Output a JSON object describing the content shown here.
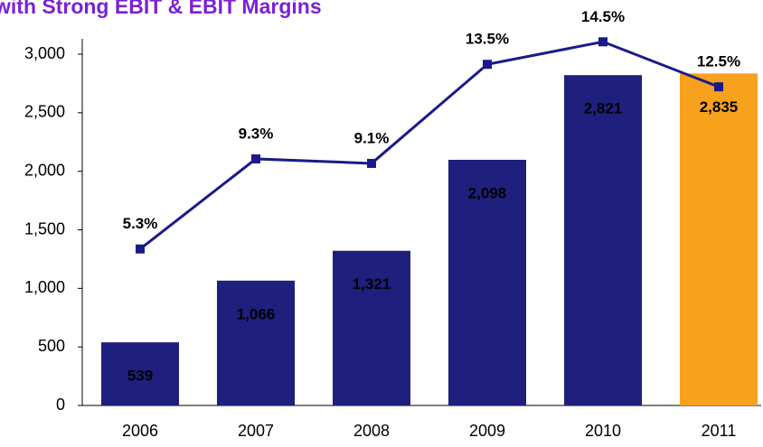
{
  "chart_data": {
    "type": "bar_line",
    "title": "with Strong EBIT & EBIT Margins",
    "categories": [
      "2006",
      "2007",
      "2008",
      "2009",
      "2010",
      "2011"
    ],
    "series": [
      {
        "type": "bar",
        "colors": [
          "#1f1f7d",
          "#1f1f7d",
          "#1f1f7d",
          "#1f1f7d",
          "#1f1f7d",
          "#f7a11c"
        ],
        "values": [
          539,
          1066,
          1321,
          2098,
          2821,
          2835
        ],
        "value_labels": [
          "539",
          "1,066",
          "1,321",
          "2,098",
          "2,821",
          "2,835"
        ]
      },
      {
        "type": "line",
        "axis": "y2",
        "color": "#1a1a8a",
        "values": [
          5.3,
          9.3,
          9.1,
          13.5,
          14.5,
          12.5
        ],
        "value_labels": [
          "5.3%",
          "9.3%",
          "9.1%",
          "13.5%",
          "14.5%",
          "12.5%"
        ]
      }
    ],
    "ylim": [
      0,
      3000
    ],
    "yticks": [
      0,
      500,
      {
        "value": 1000,
        "label": "1,000"
      },
      {
        "value": 1500,
        "label": "1,500"
      },
      {
        "value": 2000,
        "label": "2,000"
      },
      {
        "value": 2500,
        "label": "2,500"
      },
      {
        "value": 3000,
        "label": "3,000"
      }
    ],
    "y2lim": [
      -1.65,
      13.95
    ]
  }
}
